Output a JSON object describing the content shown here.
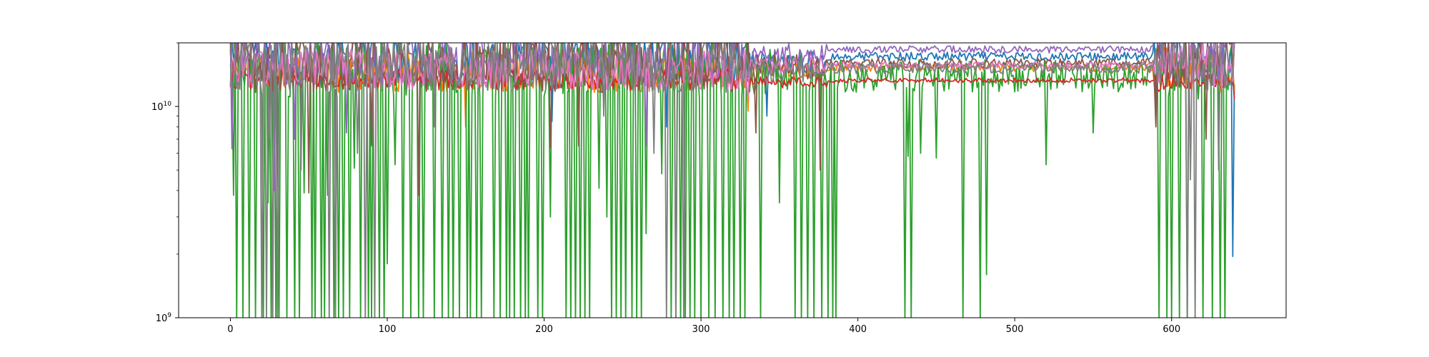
{
  "chart_data": {
    "type": "line",
    "title": "",
    "xlabel": "",
    "ylabel": "",
    "xlim": [
      -33,
      673
    ],
    "ylim": [
      1000000000,
      20000000000
    ],
    "yscale": "log",
    "grid": false,
    "legend": "none",
    "x_ticks": [
      {
        "value": 0,
        "label": "0"
      },
      {
        "value": 100,
        "label": "100"
      },
      {
        "value": 200,
        "label": "200"
      },
      {
        "value": 300,
        "label": "300"
      },
      {
        "value": 400,
        "label": "400"
      },
      {
        "value": 500,
        "label": "500"
      },
      {
        "value": 600,
        "label": "600"
      }
    ],
    "y_ticks": [
      {
        "value": 1000000000,
        "base": "10",
        "exp": "9"
      },
      {
        "value": 10000000000,
        "base": "10",
        "exp": "10"
      }
    ],
    "x_start": 0,
    "x_end": 640,
    "series": [
      {
        "color": "#1f77b4",
        "regimes": [
          {
            "until": 330,
            "level": 16500000000.0,
            "noise": 0.28
          },
          {
            "until": 380,
            "level": 16200000000.0,
            "noise": 0.12
          },
          {
            "until": 588,
            "level": 17200000000.0,
            "noise": 0.05
          },
          {
            "until": 640,
            "level": 17000000000.0,
            "noise": 0.3
          }
        ],
        "dips": [
          [
            205,
            8500000000.0
          ],
          [
            278,
            8000000000.0
          ],
          [
            342,
            9000000000.0
          ],
          [
            590,
            9500000000.0
          ],
          [
            639,
            1950000000.0
          ]
        ]
      },
      {
        "color": "#ff7f0e",
        "regimes": [
          {
            "until": 330,
            "level": 14500000000.0,
            "noise": 0.22
          },
          {
            "until": 380,
            "level": 15000000000.0,
            "noise": 0.1
          },
          {
            "until": 588,
            "level": 15200000000.0,
            "noise": 0.04
          },
          {
            "until": 640,
            "level": 15000000000.0,
            "noise": 0.25
          }
        ],
        "dips": [
          [
            150,
            8000000000.0
          ],
          [
            330,
            9500000000.0
          ]
        ]
      },
      {
        "color": "#2ca02c",
        "regimes": [
          {
            "until": 330,
            "level": 15500000000.0,
            "noise": 0.35
          },
          {
            "until": 380,
            "level": 14500000000.0,
            "noise": 0.25
          },
          {
            "until": 588,
            "level": 14000000000.0,
            "noise": 0.18
          },
          {
            "until": 640,
            "level": 14500000000.0,
            "noise": 0.3
          }
        ],
        "dips": [
          [
            2,
            3800000000.0
          ],
          [
            24,
            3500000000.0
          ],
          [
            47,
            3900000000.0
          ],
          [
            62,
            3800000000.0
          ],
          [
            79,
            5100000000.0
          ],
          [
            100,
            1800000000.0
          ],
          [
            105,
            5300000000.0
          ],
          [
            178,
            2300000000.0
          ],
          [
            204,
            3000000000.0
          ],
          [
            235,
            4100000000.0
          ],
          [
            240,
            3000000000.0
          ],
          [
            265,
            2500000000.0
          ],
          [
            275,
            4800000000.0
          ],
          [
            350,
            3500000000.0
          ],
          [
            432,
            5800000000.0
          ],
          [
            440,
            6000000000.0
          ],
          [
            450,
            5700000000.0
          ],
          [
            482,
            1600000000.0
          ],
          [
            520,
            5300000000.0
          ],
          [
            550,
            7500000000.0
          ]
        ],
        "floors": [
          4,
          8,
          12,
          16,
          21,
          26,
          29,
          31,
          36,
          41,
          44,
          52,
          54,
          58,
          60,
          66,
          69,
          72,
          76,
          83,
          88,
          90,
          95,
          98,
          110,
          115,
          120,
          123,
          130,
          135,
          139,
          142,
          146,
          151,
          153,
          157,
          160,
          168,
          172,
          176,
          178,
          181,
          185,
          188,
          190,
          196,
          199,
          214,
          217,
          220,
          223,
          226,
          229,
          243,
          246,
          249,
          252,
          256,
          259,
          262,
          281,
          284,
          287,
          290,
          293,
          296,
          300,
          305,
          309,
          314,
          318,
          321,
          325,
          328,
          338,
          360,
          364,
          368,
          372,
          377,
          381,
          384,
          386,
          430,
          434,
          467,
          478,
          592,
          597,
          600,
          605,
          610,
          620,
          626,
          631,
          634
        ]
      },
      {
        "color": "#d62728",
        "regimes": [
          {
            "until": 330,
            "level": 13500000000.0,
            "noise": 0.12
          },
          {
            "until": 380,
            "level": 13000000000.0,
            "noise": 0.06
          },
          {
            "until": 588,
            "level": 13300000000.0,
            "noise": 0.025
          },
          {
            "until": 640,
            "level": 13000000000.0,
            "noise": 0.1
          }
        ],
        "dips": [
          [
            640,
            10800000000.0
          ]
        ]
      },
      {
        "color": "#9467bd",
        "regimes": [
          {
            "until": 330,
            "level": 17000000000.0,
            "noise": 0.3
          },
          {
            "until": 380,
            "level": 17800000000.0,
            "noise": 0.12
          },
          {
            "until": 588,
            "level": 18600000000.0,
            "noise": 0.04
          },
          {
            "until": 640,
            "level": 18000000000.0,
            "noise": 0.3
          }
        ],
        "dips": [
          [
            1,
            6300000000.0
          ],
          [
            28,
            4000000000.0
          ],
          [
            41,
            7000000000.0
          ],
          [
            74,
            7500000000.0
          ],
          [
            90,
            6500000000.0
          ],
          [
            265,
            6500000000.0
          ]
        ]
      },
      {
        "color": "#8c564b",
        "regimes": [
          {
            "until": 330,
            "level": 16000000000.0,
            "noise": 0.32
          },
          {
            "until": 380,
            "level": 15500000000.0,
            "noise": 0.14
          },
          {
            "until": 588,
            "level": 16000000000.0,
            "noise": 0.05
          },
          {
            "until": 640,
            "level": 16500000000.0,
            "noise": 0.3
          }
        ],
        "dips": [
          [
            50,
            3900000000.0
          ],
          [
            90,
            6600000000.0
          ],
          [
            120,
            3800000000.0
          ],
          [
            204,
            6400000000.0
          ],
          [
            222,
            6500000000.0
          ],
          [
            335,
            7500000000.0
          ],
          [
            376,
            5000000000.0
          ],
          [
            590,
            8000000000.0
          ],
          [
            622,
            7000000000.0
          ]
        ]
      },
      {
        "color": "#e377c2",
        "regimes": [
          {
            "until": 330,
            "level": 15000000000.0,
            "noise": 0.22
          },
          {
            "until": 380,
            "level": 15500000000.0,
            "noise": 0.1
          },
          {
            "until": 588,
            "level": 15600000000.0,
            "noise": 0.04
          },
          {
            "until": 640,
            "level": 15500000000.0,
            "noise": 0.25
          }
        ],
        "dips": [
          [
            330,
            11000000000.0
          ]
        ]
      },
      {
        "color": "#7f7f7f",
        "regimes": [
          {
            "until": 330,
            "level": 16000000000.0,
            "noise": 0.32
          },
          {
            "until": 380,
            "level": 15000000000.0,
            "noise": 0.14
          },
          {
            "until": 588,
            "level": 15200000000.0,
            "noise": 0.06
          },
          {
            "until": 640,
            "level": 16000000000.0,
            "noise": 0.3
          }
        ],
        "dips": [
          [
            25,
            7000000000.0
          ],
          [
            45,
            5000000000.0
          ],
          [
            81,
            6000000000.0
          ],
          [
            130,
            8000000000.0
          ],
          [
            238,
            9000000000.0
          ],
          [
            270,
            6000000000.0
          ],
          [
            612,
            4500000000.0
          ],
          [
            630,
            5000000000.0
          ]
        ],
        "floors": [
          20,
          23,
          27,
          30,
          63,
          67,
          86,
          92,
          278,
          284,
          289,
          610,
          615
        ]
      }
    ]
  }
}
